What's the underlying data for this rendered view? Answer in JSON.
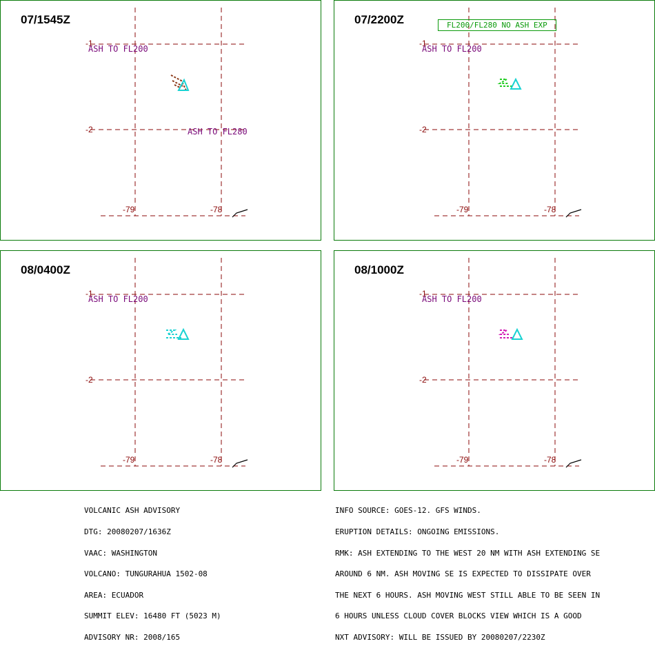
{
  "panels": [
    {
      "time": "07/1545Z",
      "labels": {
        "lat1": "-1",
        "lat2": "-2",
        "lon1": "-79",
        "lon2": "-78"
      },
      "annotations": [
        "ASH TO FL200",
        "ASH TO FL280"
      ],
      "plume_color": "#8b3a1a"
    },
    {
      "time": "07/2200Z",
      "labels": {
        "lat1": "-1",
        "lat2": "-2",
        "lon1": "-79",
        "lon2": "-78"
      },
      "annotations": [
        "ASH TO FL200"
      ],
      "boxed_note": "FL200/FL280 NO ASH EXP",
      "plume_color": "#22cc22"
    },
    {
      "time": "08/0400Z",
      "labels": {
        "lat1": "-1",
        "lat2": "-2",
        "lon1": "-79",
        "lon2": "-78"
      },
      "annotations": [
        "ASH TO FL200"
      ],
      "plume_color": "#19d2d2"
    },
    {
      "time": "08/1000Z",
      "labels": {
        "lat1": "-1",
        "lat2": "-2",
        "lon1": "-79",
        "lon2": "-78"
      },
      "annotations": [
        "ASH TO FL200"
      ],
      "plume_color": "#d21ab4"
    }
  ],
  "advisory_left": [
    "VOLCANIC ASH ADVISORY",
    "DTG: 20080207/1636Z",
    "VAAC: WASHINGTON",
    "VOLCANO: TUNGURAHUA 1502-08",
    "AREA: ECUADOR",
    "SUMMIT ELEV: 16480 FT (5023 M)",
    "ADVISORY NR: 2008/165"
  ],
  "advisory_right": [
    "INFO SOURCE: GOES-12. GFS WINDS.",
    "ERUPTION DETAILS: ONGOING EMISSIONS.",
    "RMK: ASH EXTENDING TO THE WEST 20 NM WITH ASH EXTENDING SE",
    "AROUND 6 NM. ASH MOVING SE IS EXPECTED TO DISSIPATE OVER",
    "THE NEXT 6 HOURS. ASH MOVING WEST STILL ABLE TO BE SEEN IN",
    "6 HOURS UNLESS CLOUD COVER BLOCKS VIEW WHICH IS A GOOD",
    "NXT ADVISORY: WILL BE ISSUED BY 20080207/2230Z"
  ],
  "colors": {
    "frame": "#0a7a0a",
    "grid": "#8b0a0a",
    "annotation": "#7a0a7a",
    "volcano": "#19d2d2"
  }
}
